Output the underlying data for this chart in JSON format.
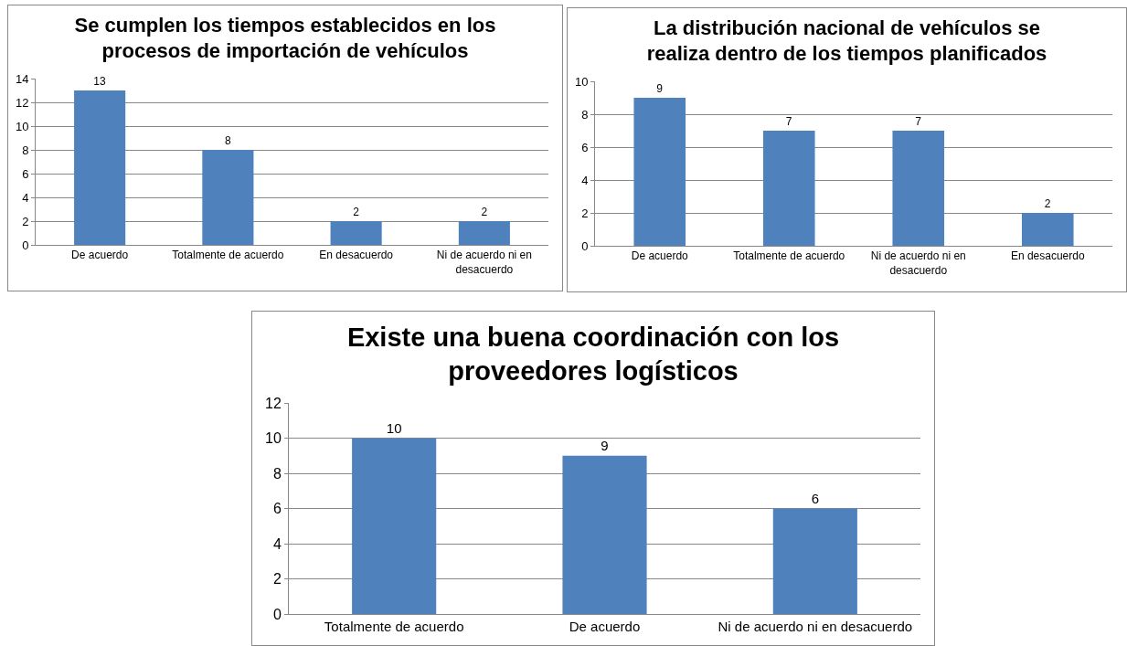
{
  "chart_data": [
    {
      "type": "bar",
      "title": "Se cumplen los tiempos establecidos en los procesos de importación de vehículos",
      "categories": [
        "De acuerdo",
        "Totalmente de acuerdo",
        "En desacuerdo",
        "Ni de acuerdo ni en desacuerdo"
      ],
      "values": [
        13,
        8,
        2,
        2
      ],
      "color": "#4f81bd",
      "ylim": [
        0,
        14
      ],
      "yticks": [
        0,
        2,
        4,
        6,
        8,
        10,
        12,
        14
      ],
      "grid": "y",
      "data_labels": true
    },
    {
      "type": "bar",
      "title": "La distribución nacional de vehículos se realiza dentro de los tiempos planificados",
      "categories": [
        "De acuerdo",
        "Totalmente de acuerdo",
        "Ni de acuerdo ni en desacuerdo",
        "En desacuerdo"
      ],
      "values": [
        9,
        7,
        7,
        2
      ],
      "color": "#4f81bd",
      "ylim": [
        0,
        10
      ],
      "yticks": [
        0,
        2,
        4,
        6,
        8,
        10
      ],
      "grid": "y",
      "data_labels": true
    },
    {
      "type": "bar",
      "title": "Existe una buena coordinación con los proveedores logísticos",
      "categories": [
        "Totalmente de acuerdo",
        "De acuerdo",
        "Ni de acuerdo ni en desacuerdo"
      ],
      "values": [
        10,
        9,
        6
      ],
      "color": "#4f81bd",
      "ylim": [
        0,
        12
      ],
      "yticks": [
        0,
        2,
        4,
        6,
        8,
        10,
        12
      ],
      "grid": "y",
      "data_labels": true
    }
  ]
}
